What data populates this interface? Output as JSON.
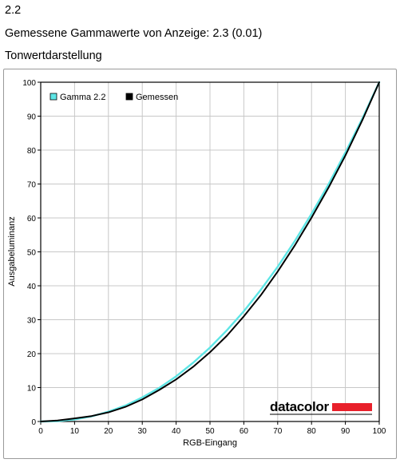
{
  "header": {
    "section_number": "2.2",
    "gamma_line": "Gemessene Gammawerte von Anzeige: 2.3 (0.01)",
    "chart_heading": "Tonwertdarstellung"
  },
  "brand": {
    "logo_text": "datacolor",
    "bar_color": "#e8202a"
  },
  "colors": {
    "gamma22": "#5ee6e6",
    "measured": "#000000",
    "grid": "#c8c8c8"
  },
  "chart_data": {
    "type": "line",
    "title": "",
    "xlabel": "RGB-Eingang",
    "ylabel": "Ausgabeluminanz",
    "xlim": [
      0,
      100
    ],
    "ylim": [
      0,
      100
    ],
    "xticks": [
      0,
      10,
      20,
      30,
      40,
      50,
      60,
      70,
      80,
      90,
      100
    ],
    "yticks": [
      0,
      10,
      20,
      30,
      40,
      50,
      60,
      70,
      80,
      90,
      100
    ],
    "grid": true,
    "legend_position": "top-left",
    "series": [
      {
        "name": "Gamma 2.2",
        "color": "#5ee6e6",
        "x": [
          0,
          5,
          10,
          15,
          20,
          25,
          30,
          35,
          40,
          45,
          50,
          55,
          60,
          65,
          70,
          75,
          80,
          85,
          90,
          95,
          100
        ],
        "y": [
          0,
          0.1,
          0.6,
          1.5,
          2.9,
          4.7,
          7.1,
          9.9,
          13.3,
          17.3,
          21.8,
          26.9,
          32.5,
          38.8,
          45.6,
          53.1,
          61.2,
          69.9,
          79.3,
          89.3,
          100
        ]
      },
      {
        "name": "Gemessen",
        "color": "#000000",
        "x": [
          0,
          5,
          10,
          15,
          20,
          25,
          30,
          35,
          40,
          45,
          50,
          55,
          60,
          65,
          70,
          75,
          80,
          85,
          90,
          95,
          100
        ],
        "y": [
          0,
          0.3,
          0.9,
          1.6,
          2.7,
          4.3,
          6.5,
          9.3,
          12.4,
          16.1,
          20.4,
          25.3,
          31.0,
          37.2,
          44.2,
          51.8,
          60.1,
          68.9,
          78.4,
          88.8,
          100
        ]
      }
    ]
  }
}
